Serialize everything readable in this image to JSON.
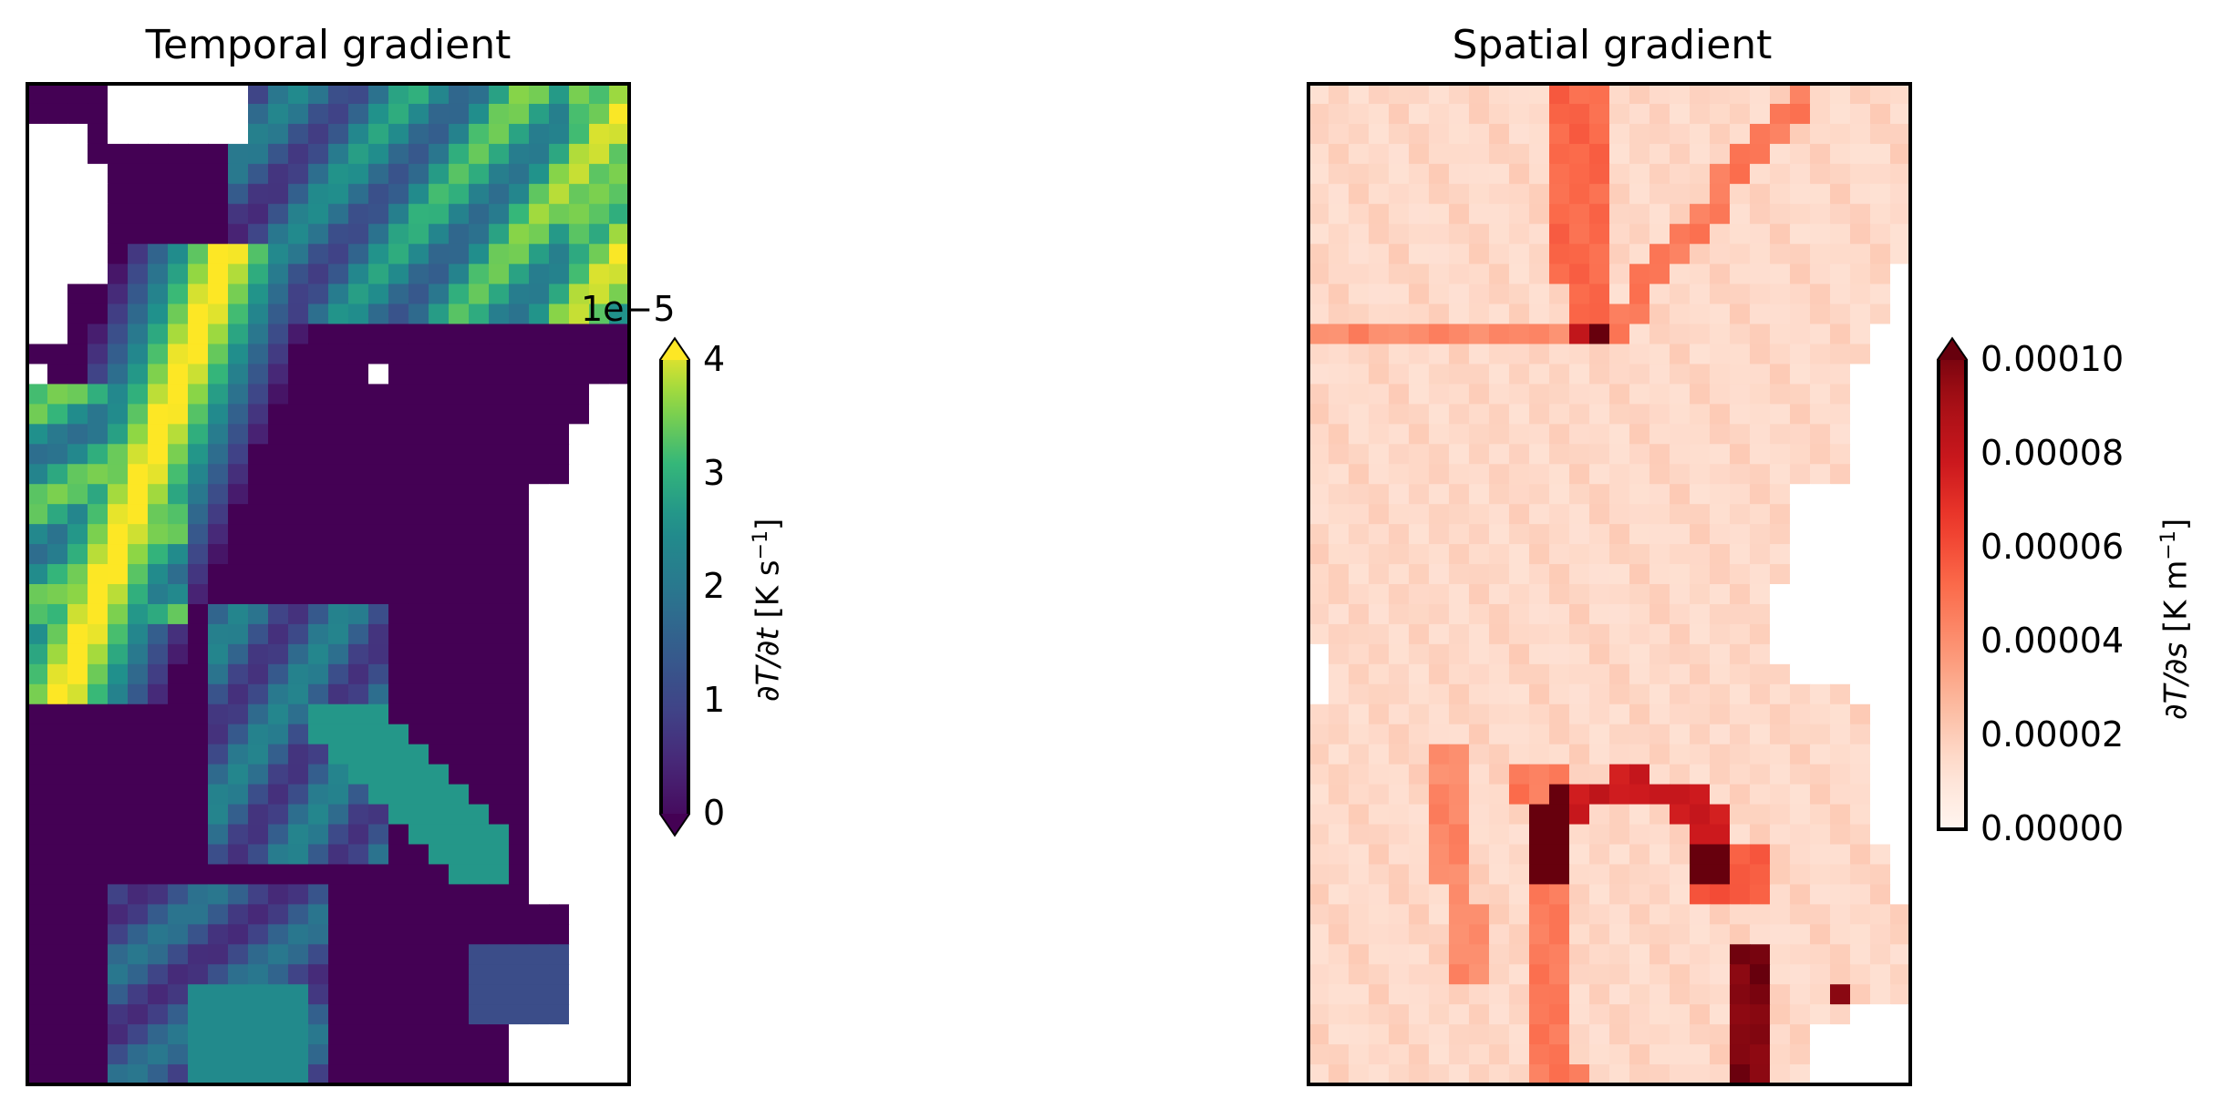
{
  "figure": {
    "panels": [
      {
        "id": "temporal",
        "title": "Temporal gradient",
        "colormap": "viridis",
        "colorbar": {
          "label": "∂T/∂t [K s⁻¹]",
          "label_parts": {
            "math": "∂T/∂t",
            "unit": "[K s",
            "exp": "−1",
            "close": "]"
          },
          "offset_text": "1e−5",
          "ticks": [
            "0",
            "1",
            "2",
            "3",
            "4"
          ],
          "tick_values": [
            0,
            1,
            2,
            3,
            4
          ],
          "range": [
            0,
            4
          ],
          "extend": "both"
        }
      },
      {
        "id": "spatial",
        "title": "Spatial gradient",
        "colormap": "Reds",
        "colorbar": {
          "label": "∂T/∂s [K m⁻¹]",
          "label_parts": {
            "math": "∂T/∂s",
            "unit": "[K m",
            "exp": "−1",
            "close": "]"
          },
          "offset_text": "",
          "ticks": [
            "0.00000",
            "0.00002",
            "0.00004",
            "0.00006",
            "0.00008",
            "0.00010"
          ],
          "tick_values": [
            0,
            2e-05,
            4e-05,
            6e-05,
            8e-05,
            0.0001
          ],
          "range": [
            0,
            0.0001
          ],
          "extend": "max"
        }
      }
    ]
  },
  "chart_data": [
    {
      "type": "heatmap",
      "title": "Temporal gradient",
      "colorbar_label": "∂T/∂t [K s⁻¹]",
      "value_scale": "1e-5",
      "vmin": 0,
      "vmax": 4,
      "grid_rows": 50,
      "grid_cols": 30,
      "nan_color": "#ffffff",
      "values": []
    },
    {
      "type": "heatmap",
      "title": "Spatial gradient",
      "colorbar_label": "∂T/∂s [K m⁻¹]",
      "vmin": 0,
      "vmax": 0.0001,
      "grid_rows": 50,
      "grid_cols": 30,
      "nan_color": "#ffffff",
      "values": []
    }
  ]
}
